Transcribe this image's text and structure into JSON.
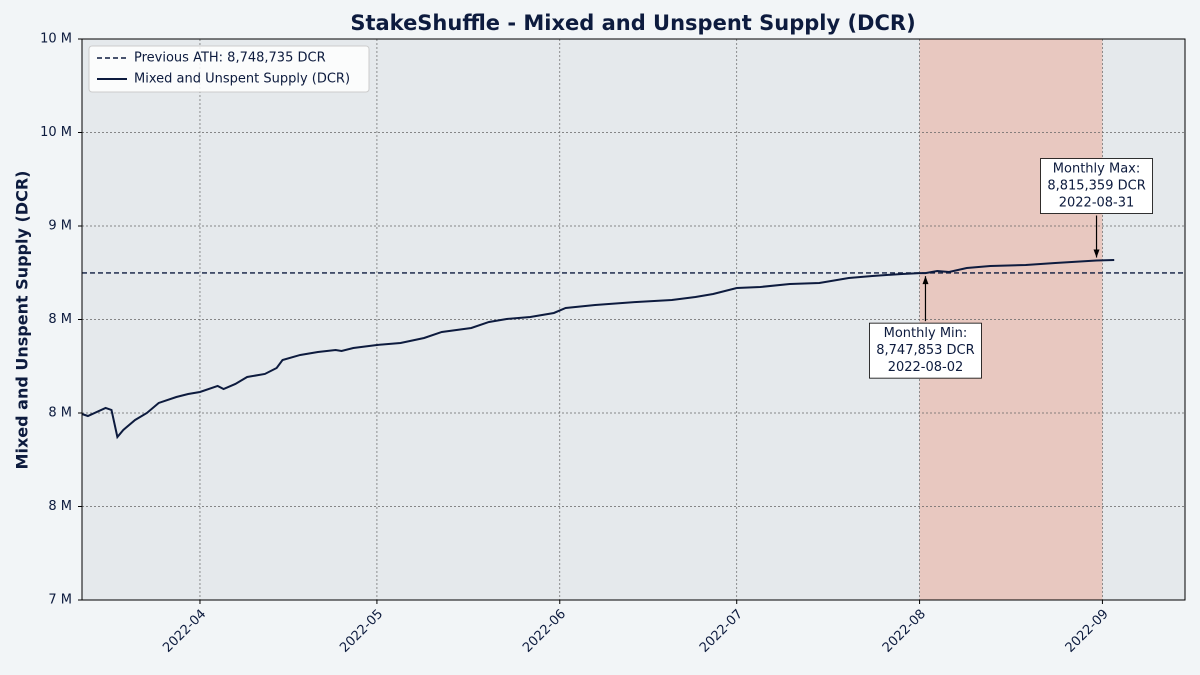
{
  "chart_data": {
    "type": "line",
    "title": "StakeShuffle - Mixed and Unspent Supply (DCR)",
    "y_label": "Mixed and Unspent Supply (DCR)",
    "x": [
      "2022-03-12",
      "2022-03-13",
      "2022-03-16",
      "2022-03-17",
      "2022-03-18",
      "2022-03-19",
      "2022-03-21",
      "2022-03-23",
      "2022-03-25",
      "2022-03-28",
      "2022-03-30",
      "2022-04-01",
      "2022-04-04",
      "2022-04-05",
      "2022-04-07",
      "2022-04-09",
      "2022-04-12",
      "2022-04-14",
      "2022-04-15",
      "2022-04-18",
      "2022-04-21",
      "2022-04-24",
      "2022-04-25",
      "2022-04-27",
      "2022-05-01",
      "2022-05-05",
      "2022-05-09",
      "2022-05-12",
      "2022-05-17",
      "2022-05-20",
      "2022-05-23",
      "2022-05-27",
      "2022-05-31",
      "2022-06-02",
      "2022-06-07",
      "2022-06-14",
      "2022-06-20",
      "2022-06-24",
      "2022-06-27",
      "2022-07-01",
      "2022-07-05",
      "2022-07-10",
      "2022-07-15",
      "2022-07-20",
      "2022-07-24",
      "2022-07-29",
      "2022-08-01",
      "2022-08-02",
      "2022-08-04",
      "2022-08-06",
      "2022-08-09",
      "2022-08-13",
      "2022-08-19",
      "2022-08-24",
      "2022-08-31",
      "2022-09-03"
    ],
    "series": [
      {
        "name": "Mixed and Unspent Supply (DCR)",
        "color": "#0d1b3e",
        "values": [
          7994700,
          7984000,
          8026800,
          8016100,
          7871700,
          7909200,
          7962600,
          8000100,
          8053600,
          8085600,
          8101700,
          8112400,
          8144500,
          8128400,
          8155200,
          8192600,
          8208700,
          8240700,
          8283500,
          8310300,
          8326300,
          8337000,
          8331700,
          8347700,
          8363700,
          8374400,
          8401200,
          8433300,
          8454700,
          8486700,
          8502800,
          8513500,
          8534900,
          8561600,
          8577700,
          8593700,
          8604400,
          8620400,
          8636500,
          8668600,
          8673900,
          8689900,
          8695300,
          8722000,
          8732800,
          8743400,
          8748000,
          8747853,
          8759500,
          8754100,
          8775500,
          8786200,
          8791600,
          8802300,
          8815359,
          8818000
        ]
      }
    ],
    "reference_line": {
      "label": "Previous ATH: 8,748,735 DCR",
      "value": 8748735,
      "color": "#0d1b3e"
    },
    "highlight": {
      "start": "2022-08-01",
      "end": "2022-09-01",
      "color": "#e8c8c0"
    },
    "annotations": [
      {
        "lines": [
          "Monthly Min:",
          "8,747,853 DCR",
          "2022-08-02"
        ],
        "x": "2022-08-02",
        "y": 8747853,
        "position": "below"
      },
      {
        "lines": [
          "Monthly Max:",
          "8,815,359 DCR",
          "2022-08-31"
        ],
        "x": "2022-08-31",
        "y": 8815359,
        "position": "above"
      }
    ],
    "xlim": [
      "2022-03-12",
      "2022-09-15"
    ],
    "xticks": [
      {
        "value": "2022-04-01",
        "label": "2022-04"
      },
      {
        "value": "2022-05-01",
        "label": "2022-05"
      },
      {
        "value": "2022-06-01",
        "label": "2022-06"
      },
      {
        "value": "2022-07-01",
        "label": "2022-07"
      },
      {
        "value": "2022-08-01",
        "label": "2022-08"
      },
      {
        "value": "2022-09-01",
        "label": "2022-09"
      }
    ],
    "ylim": [
      7000000,
      10000000
    ],
    "yticks": [
      {
        "value": 7000000,
        "label": "7 M"
      },
      {
        "value": 7500000,
        "label": "8 M"
      },
      {
        "value": 8000000,
        "label": "8 M"
      },
      {
        "value": 8500000,
        "label": "8 M"
      },
      {
        "value": 9000000,
        "label": "9 M"
      },
      {
        "value": 9500000,
        "label": "10 M"
      },
      {
        "value": 10000000,
        "label": "10 M"
      }
    ],
    "grid": true,
    "legend": "upper left"
  }
}
